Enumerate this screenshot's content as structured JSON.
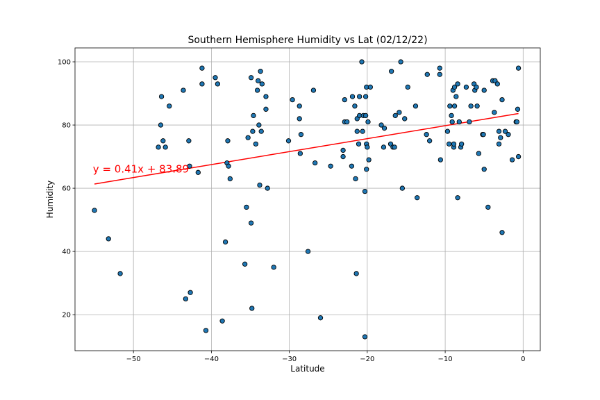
{
  "chart_data": {
    "type": "scatter",
    "title": "Southern Hemisphere Humidity vs Lat (02/12/22)",
    "xlabel": "Latitude",
    "ylabel": "Humidity",
    "xlim": [
      -57.5,
      2.2
    ],
    "ylim": [
      8.6,
      104.4
    ],
    "xticks": [
      -50,
      -40,
      -30,
      -20,
      -10,
      0
    ],
    "yticks": [
      20,
      40,
      60,
      80,
      100
    ],
    "grid": true,
    "marker_color": "#1f77b4",
    "marker_edge_color": "#000000",
    "line_color": "#ff0000",
    "annotation": {
      "text": "y = 0.41x + 83.89",
      "x": -55.2,
      "y": 65.0,
      "color": "#ff0000"
    },
    "regression": {
      "slope": 0.41,
      "intercept": 83.89,
      "x_range": [
        -55.0,
        -0.6
      ]
    },
    "points": [
      [
        -55.0,
        53
      ],
      [
        -53.2,
        44
      ],
      [
        -51.7,
        33
      ],
      [
        -46.8,
        73
      ],
      [
        -46.5,
        80
      ],
      [
        -46.4,
        89
      ],
      [
        -46.2,
        75
      ],
      [
        -45.9,
        73
      ],
      [
        -45.4,
        86
      ],
      [
        -43.6,
        91
      ],
      [
        -43.3,
        25
      ],
      [
        -42.9,
        75
      ],
      [
        -42.8,
        67
      ],
      [
        -42.7,
        27
      ],
      [
        -41.7,
        65
      ],
      [
        -41.2,
        98
      ],
      [
        -41.2,
        93
      ],
      [
        -40.7,
        15
      ],
      [
        -39.5,
        95
      ],
      [
        -39.2,
        93
      ],
      [
        -38.6,
        18
      ],
      [
        -38.2,
        43
      ],
      [
        -38.0,
        68
      ],
      [
        -37.9,
        75
      ],
      [
        -37.8,
        67
      ],
      [
        -37.6,
        63
      ],
      [
        -35.7,
        36
      ],
      [
        -35.5,
        54
      ],
      [
        -35.3,
        76
      ],
      [
        -34.9,
        49
      ],
      [
        -34.9,
        95
      ],
      [
        -34.8,
        22
      ],
      [
        -34.7,
        78
      ],
      [
        -34.6,
        83
      ],
      [
        -34.3,
        74
      ],
      [
        -34.1,
        91
      ],
      [
        -34.0,
        94
      ],
      [
        -33.9,
        80
      ],
      [
        -33.8,
        61
      ],
      [
        -33.7,
        97
      ],
      [
        -33.6,
        78
      ],
      [
        -33.5,
        93
      ],
      [
        -33.0,
        85
      ],
      [
        -33.0,
        89
      ],
      [
        -32.8,
        60
      ],
      [
        -32.0,
        35
      ],
      [
        -30.1,
        75
      ],
      [
        -29.6,
        88
      ],
      [
        -28.7,
        82
      ],
      [
        -28.7,
        86
      ],
      [
        -28.6,
        71
      ],
      [
        -28.5,
        77
      ],
      [
        -27.6,
        40
      ],
      [
        -26.9,
        91
      ],
      [
        -26.7,
        68
      ],
      [
        -26.0,
        19
      ],
      [
        -24.7,
        67
      ],
      [
        -23.1,
        70
      ],
      [
        -23.1,
        72
      ],
      [
        -22.9,
        88
      ],
      [
        -22.9,
        81
      ],
      [
        -22.6,
        81
      ],
      [
        -22.0,
        67
      ],
      [
        -21.9,
        89
      ],
      [
        -21.6,
        86
      ],
      [
        -21.5,
        63
      ],
      [
        -21.4,
        33
      ],
      [
        -21.3,
        78
      ],
      [
        -21.3,
        82
      ],
      [
        -21.1,
        74
      ],
      [
        -21.0,
        89
      ],
      [
        -21.0,
        83
      ],
      [
        -20.7,
        100
      ],
      [
        -20.6,
        78
      ],
      [
        -20.5,
        83
      ],
      [
        -20.3,
        59
      ],
      [
        -20.3,
        13
      ],
      [
        -20.2,
        83
      ],
      [
        -20.2,
        89
      ],
      [
        -20.1,
        92
      ],
      [
        -20.1,
        74
      ],
      [
        -20.1,
        66
      ],
      [
        -20.0,
        73
      ],
      [
        -19.9,
        81
      ],
      [
        -19.8,
        69
      ],
      [
        -19.6,
        92
      ],
      [
        -18.2,
        80
      ],
      [
        -17.9,
        73
      ],
      [
        -17.8,
        79
      ],
      [
        -17.0,
        74
      ],
      [
        -16.9,
        97
      ],
      [
        -16.7,
        73
      ],
      [
        -16.5,
        73
      ],
      [
        -16.4,
        83
      ],
      [
        -15.9,
        84
      ],
      [
        -15.7,
        100
      ],
      [
        -15.5,
        60
      ],
      [
        -15.2,
        82
      ],
      [
        -14.8,
        92
      ],
      [
        -13.8,
        86
      ],
      [
        -13.6,
        57
      ],
      [
        -12.4,
        77
      ],
      [
        -12.3,
        96
      ],
      [
        -12.0,
        75
      ],
      [
        -10.7,
        98
      ],
      [
        -10.7,
        96
      ],
      [
        -10.6,
        69
      ],
      [
        -9.7,
        78
      ],
      [
        -9.5,
        74
      ],
      [
        -9.4,
        86
      ],
      [
        -9.2,
        83
      ],
      [
        -9.1,
        81
      ],
      [
        -9.0,
        91
      ],
      [
        -8.9,
        73
      ],
      [
        -8.9,
        74
      ],
      [
        -8.8,
        86
      ],
      [
        -8.8,
        92
      ],
      [
        -8.6,
        89
      ],
      [
        -8.4,
        93
      ],
      [
        -8.4,
        57
      ],
      [
        -8.2,
        81
      ],
      [
        -8.0,
        73
      ],
      [
        -7.9,
        74
      ],
      [
        -7.3,
        92
      ],
      [
        -6.9,
        81
      ],
      [
        -6.7,
        86
      ],
      [
        -6.3,
        93
      ],
      [
        -6.2,
        91
      ],
      [
        -6.0,
        92
      ],
      [
        -5.9,
        86
      ],
      [
        -5.7,
        71
      ],
      [
        -5.2,
        77
      ],
      [
        -5.1,
        77
      ],
      [
        -5.0,
        91
      ],
      [
        -5.0,
        66
      ],
      [
        -4.5,
        54
      ],
      [
        -3.9,
        94
      ],
      [
        -3.7,
        84
      ],
      [
        -3.6,
        94
      ],
      [
        -3.3,
        93
      ],
      [
        -3.1,
        78
      ],
      [
        -3.1,
        74
      ],
      [
        -2.9,
        76
      ],
      [
        -2.7,
        46
      ],
      [
        -2.7,
        88
      ],
      [
        -2.3,
        78
      ],
      [
        -1.9,
        77
      ],
      [
        -1.4,
        69
      ],
      [
        -0.9,
        81
      ],
      [
        -0.8,
        81
      ],
      [
        -0.7,
        85
      ],
      [
        -0.6,
        98
      ],
      [
        -0.6,
        70
      ]
    ]
  }
}
